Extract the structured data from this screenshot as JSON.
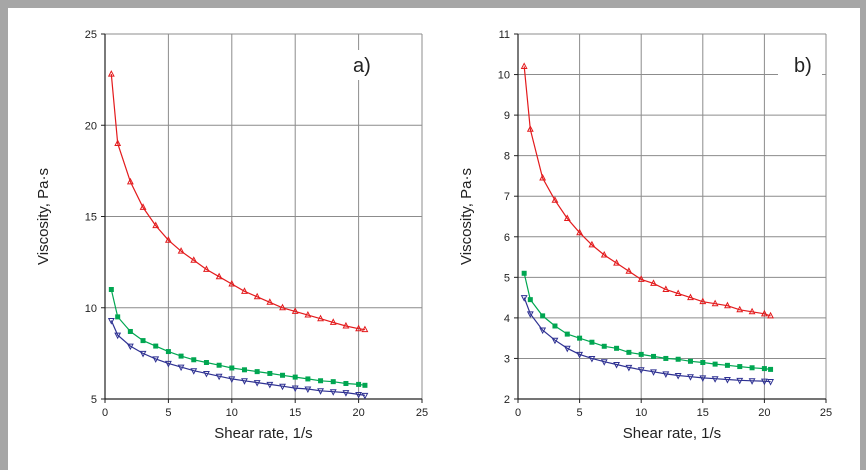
{
  "chart_data": [
    {
      "type": "line",
      "panel_label": "a)",
      "xlabel": "Shear rate, 1/s",
      "ylabel": "Viscosity, Pa·s",
      "xlim": [
        0,
        25
      ],
      "ylim": [
        5,
        25
      ],
      "x_ticks": [
        0,
        5,
        10,
        15,
        20,
        25
      ],
      "y_ticks": [
        5,
        10,
        15,
        20,
        25
      ],
      "grid": true,
      "series": [
        {
          "color": "#e31a1c",
          "marker": "triangle-up",
          "x": [
            0.5,
            1,
            2,
            3,
            4,
            5,
            6,
            7,
            8,
            9,
            10,
            11,
            12,
            13,
            14,
            15,
            16,
            17,
            18,
            19,
            20,
            20.5
          ],
          "y": [
            22.8,
            19.0,
            16.9,
            15.5,
            14.5,
            13.7,
            13.1,
            12.6,
            12.1,
            11.7,
            11.3,
            10.9,
            10.6,
            10.3,
            10.0,
            9.8,
            9.6,
            9.4,
            9.2,
            9.0,
            8.85,
            8.8
          ]
        },
        {
          "color": "#00a651",
          "marker": "square",
          "x": [
            0.5,
            1,
            2,
            3,
            4,
            5,
            6,
            7,
            8,
            9,
            10,
            11,
            12,
            13,
            14,
            15,
            16,
            17,
            18,
            19,
            20,
            20.5
          ],
          "y": [
            11.0,
            9.5,
            8.7,
            8.2,
            7.9,
            7.6,
            7.35,
            7.15,
            7.0,
            6.85,
            6.7,
            6.6,
            6.5,
            6.4,
            6.3,
            6.2,
            6.1,
            6.0,
            5.95,
            5.85,
            5.8,
            5.75
          ]
        },
        {
          "color": "#2e3192",
          "marker": "triangle-down",
          "x": [
            0.5,
            1,
            2,
            3,
            4,
            5,
            6,
            7,
            8,
            9,
            10,
            11,
            12,
            13,
            14,
            15,
            16,
            17,
            18,
            19,
            20,
            20.5
          ],
          "y": [
            9.3,
            8.5,
            7.9,
            7.5,
            7.2,
            6.95,
            6.75,
            6.55,
            6.4,
            6.25,
            6.1,
            6.0,
            5.9,
            5.8,
            5.7,
            5.6,
            5.55,
            5.45,
            5.4,
            5.35,
            5.25,
            5.2
          ]
        }
      ]
    },
    {
      "type": "line",
      "panel_label": "b)",
      "xlabel": "Shear rate, 1/s",
      "ylabel": "Viscosity, Pa·s",
      "xlim": [
        0,
        25
      ],
      "ylim": [
        2,
        11
      ],
      "x_ticks": [
        0,
        5,
        10,
        15,
        20,
        25
      ],
      "y_ticks": [
        2,
        3,
        4,
        5,
        6,
        7,
        8,
        9,
        10,
        11
      ],
      "grid": true,
      "series": [
        {
          "color": "#e31a1c",
          "marker": "triangle-up",
          "x": [
            0.5,
            1,
            2,
            3,
            4,
            5,
            6,
            7,
            8,
            9,
            10,
            11,
            12,
            13,
            14,
            15,
            16,
            17,
            18,
            19,
            20,
            20.5
          ],
          "y": [
            10.2,
            8.65,
            7.45,
            6.9,
            6.45,
            6.1,
            5.8,
            5.55,
            5.35,
            5.15,
            4.95,
            4.85,
            4.7,
            4.6,
            4.5,
            4.4,
            4.35,
            4.3,
            4.2,
            4.15,
            4.1,
            4.05
          ]
        },
        {
          "color": "#00a651",
          "marker": "square",
          "x": [
            0.5,
            1,
            2,
            3,
            4,
            5,
            6,
            7,
            8,
            9,
            10,
            11,
            12,
            13,
            14,
            15,
            16,
            17,
            18,
            19,
            20,
            20.5
          ],
          "y": [
            5.1,
            4.45,
            4.05,
            3.8,
            3.6,
            3.5,
            3.4,
            3.3,
            3.25,
            3.15,
            3.1,
            3.05,
            3.0,
            2.98,
            2.93,
            2.9,
            2.86,
            2.83,
            2.8,
            2.77,
            2.75,
            2.73
          ]
        },
        {
          "color": "#2e3192",
          "marker": "triangle-down",
          "x": [
            0.5,
            1,
            2,
            3,
            4,
            5,
            6,
            7,
            8,
            9,
            10,
            11,
            12,
            13,
            14,
            15,
            16,
            17,
            18,
            19,
            20,
            20.5
          ],
          "y": [
            4.5,
            4.1,
            3.7,
            3.45,
            3.25,
            3.1,
            3.0,
            2.92,
            2.85,
            2.78,
            2.72,
            2.67,
            2.62,
            2.58,
            2.55,
            2.52,
            2.5,
            2.48,
            2.46,
            2.45,
            2.44,
            2.43
          ]
        }
      ]
    }
  ]
}
